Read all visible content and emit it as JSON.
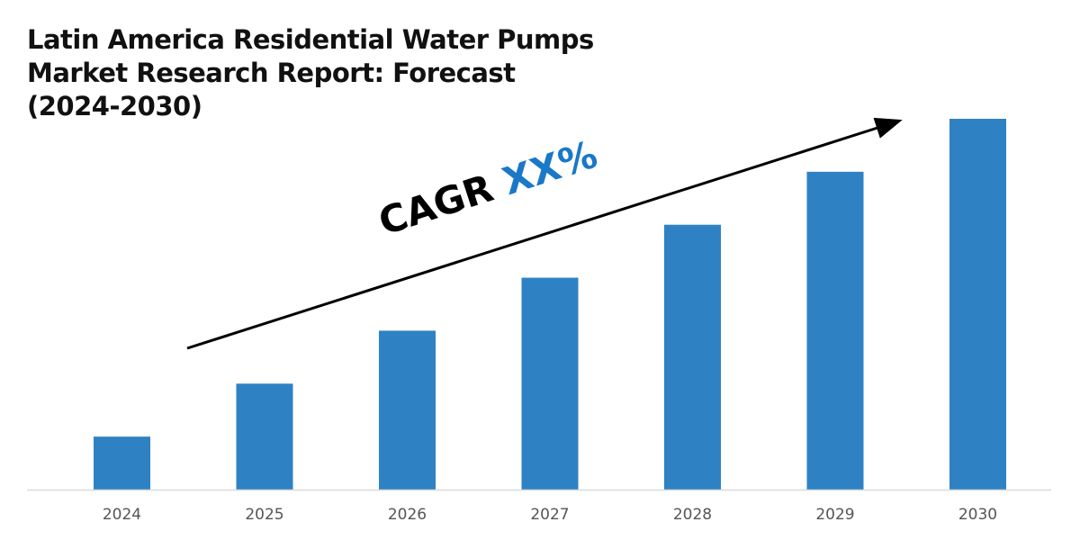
{
  "chart_data": {
    "type": "bar",
    "title": "Latin America Residential Water Pumps Market Research Report: Forecast (2024-2030)",
    "categories": [
      "2024",
      "2025",
      "2026",
      "2027",
      "2028",
      "2029",
      "2030"
    ],
    "values": [
      1,
      2,
      3,
      4,
      5,
      6,
      7
    ],
    "ylim": [
      0,
      7
    ],
    "xlabel": "",
    "ylabel": "",
    "grid": false,
    "bar_color": "#2e82c4",
    "annotation": {
      "prefix": "CAGR",
      "value": "XX%",
      "value_color": "#1a78c8",
      "arrow": "upward trend arrow"
    }
  }
}
